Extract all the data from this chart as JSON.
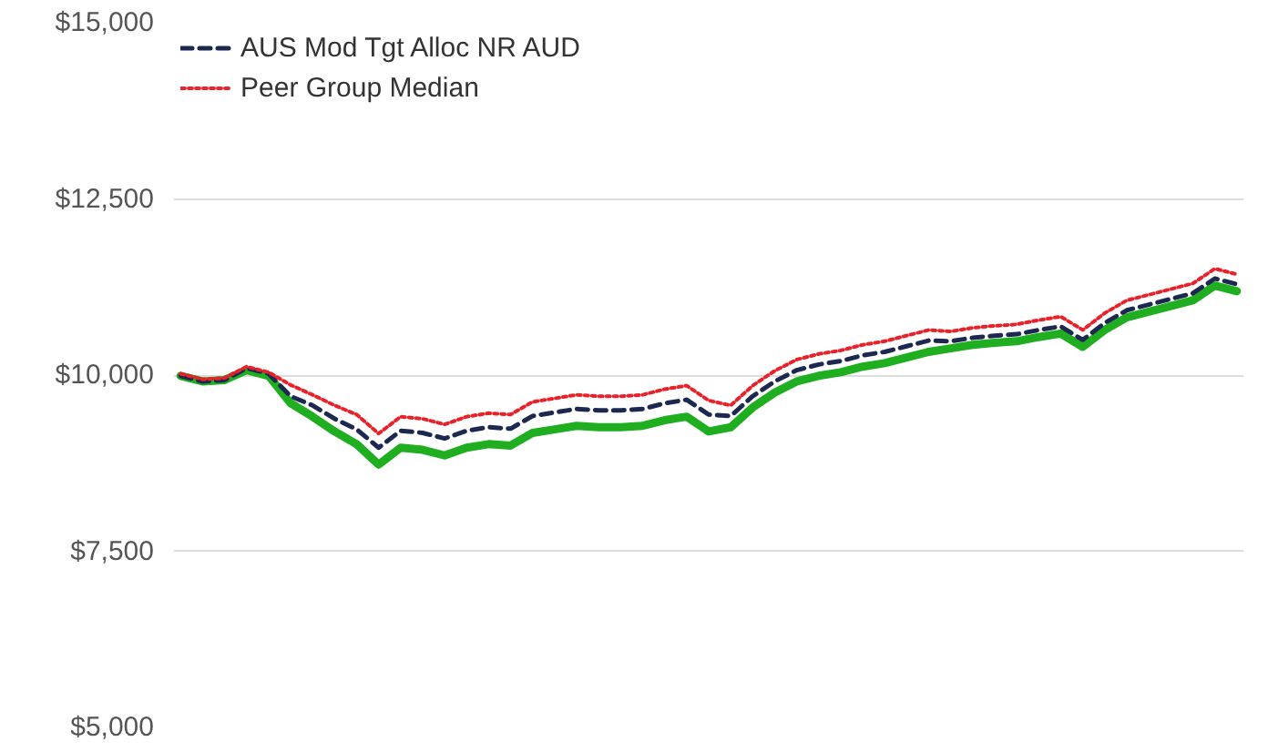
{
  "chart_data": {
    "type": "line",
    "categories": [
      null,
      null,
      null,
      null,
      null,
      null,
      null,
      null,
      null,
      null,
      null,
      null,
      null,
      null,
      null,
      null,
      null,
      null,
      null,
      null,
      null,
      null,
      null,
      null,
      null,
      null,
      null,
      null,
      null,
      null,
      null,
      null,
      null,
      null,
      null,
      null,
      null,
      null,
      null,
      null,
      null,
      null,
      null,
      null,
      null,
      null,
      null,
      null,
      null
    ],
    "ylim": [
      5000,
      15000
    ],
    "yticks": [
      {
        "value": 5000,
        "label": "$5,000"
      },
      {
        "value": 7500,
        "label": "$7,500"
      },
      {
        "value": 10000,
        "label": "$10,000"
      },
      {
        "value": 12500,
        "label": "$12,500"
      },
      {
        "value": 15000,
        "label": "$15,000"
      }
    ],
    "grid": "y",
    "legend": "top left",
    "series": [
      {
        "color": "#1fae1f",
        "line_style": "solid",
        "values": [
          9990,
          9910,
          9930,
          10070,
          9990,
          9600,
          9410,
          9200,
          9020,
          8730,
          8970,
          8940,
          8860,
          8970,
          9020,
          9000,
          9180,
          9230,
          9280,
          9260,
          9260,
          9280,
          9360,
          9410,
          9200,
          9260,
          9540,
          9750,
          9910,
          9990,
          10040,
          10120,
          10170,
          10250,
          10330,
          10380,
          10430,
          10460,
          10480,
          10540,
          10590,
          10400,
          10640,
          10820,
          10900,
          10980,
          11060,
          11270,
          11190
        ]
      },
      {
        "name": "AUS Mod Tgt Alloc NR AUD",
        "color": "#1c2850",
        "line_style": "dashed",
        "values": [
          9990,
          9910,
          9930,
          10100,
          10020,
          9700,
          9570,
          9380,
          9230,
          8970,
          9210,
          9180,
          9100,
          9210,
          9260,
          9240,
          9420,
          9470,
          9520,
          9500,
          9500,
          9520,
          9600,
          9650,
          9440,
          9420,
          9700,
          9910,
          10070,
          10150,
          10200,
          10280,
          10330,
          10410,
          10490,
          10480,
          10530,
          10560,
          10580,
          10640,
          10690,
          10500,
          10740,
          10920,
          11000,
          11080,
          11160,
          11370,
          11290
        ]
      },
      {
        "name": "Peer Group Median",
        "color": "#e8222a",
        "line_style": "dotted",
        "values": [
          10020,
          9940,
          9960,
          10120,
          10040,
          9860,
          9720,
          9570,
          9440,
          9170,
          9410,
          9380,
          9300,
          9410,
          9460,
          9440,
          9620,
          9670,
          9720,
          9700,
          9700,
          9720,
          9800,
          9850,
          9640,
          9570,
          9850,
          10060,
          10220,
          10300,
          10350,
          10430,
          10480,
          10560,
          10640,
          10620,
          10670,
          10700,
          10720,
          10780,
          10830,
          10640,
          10880,
          11060,
          11140,
          11220,
          11300,
          11510,
          11430
        ]
      }
    ]
  }
}
